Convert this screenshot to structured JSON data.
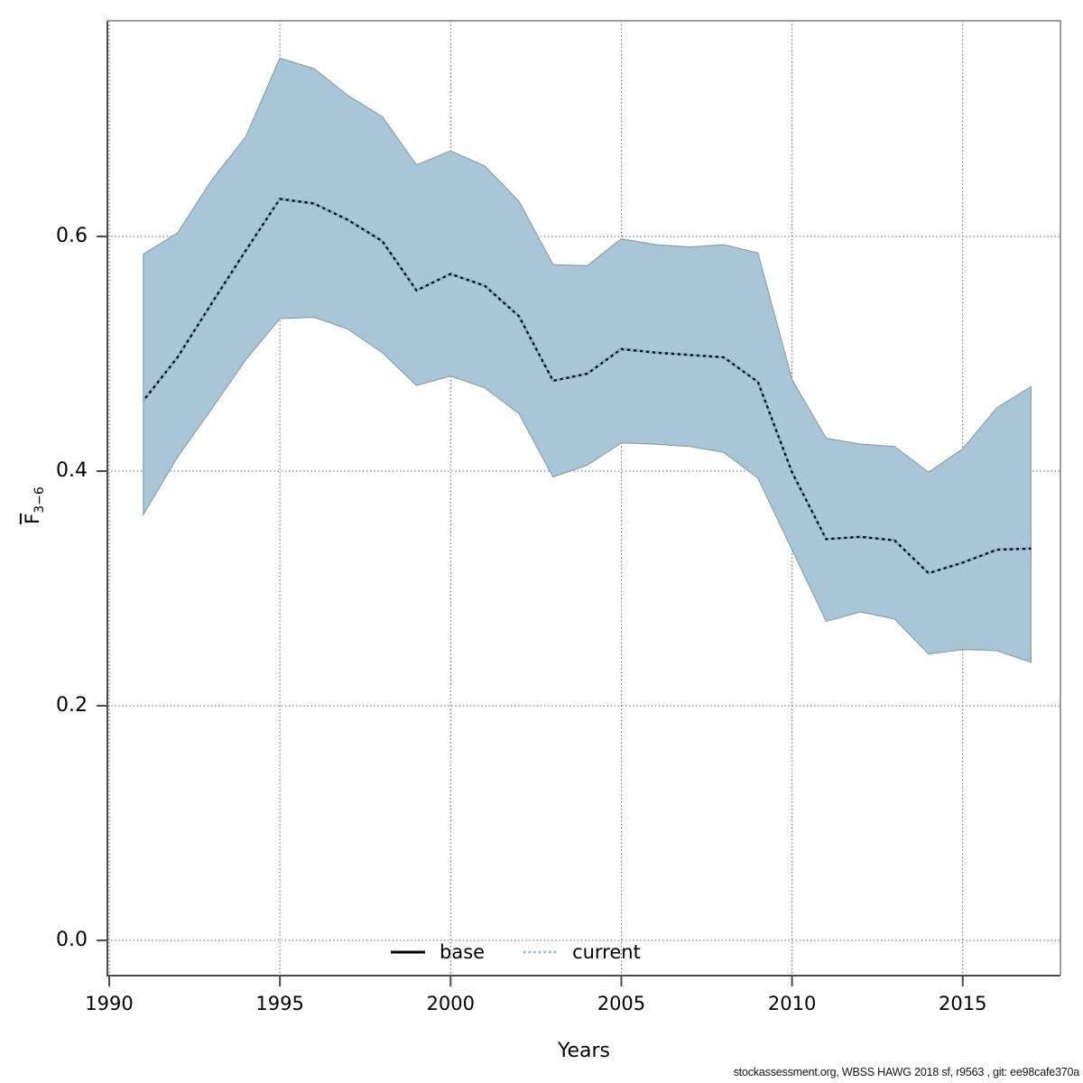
{
  "page": {
    "background": "#ffffff"
  },
  "axes": {
    "x_label": "Years",
    "y_label_main": "F",
    "y_label_sub": "3−6"
  },
  "legend": {
    "items": [
      {
        "label": "base",
        "color": "#000000",
        "style": "solid"
      },
      {
        "label": "current",
        "color": "#7fb8dc",
        "style": "dotted"
      }
    ]
  },
  "footer": {
    "text": "stockassessment.org, WBSS HAWG 2018 sf, r9563 , git: ee98cafe370a"
  },
  "colors": {
    "ribbon": "#a9c6d7",
    "ribbon_edge": "#8e9fa9",
    "grid": "#5f5f5f",
    "axis_dark": "#4c4c4c",
    "axis_light": "#9c9c9c",
    "text": "#000000"
  },
  "chart_data": {
    "type": "line",
    "title": "",
    "xlabel": "Years",
    "ylabel": "F̄3−6",
    "grid": true,
    "legend_position": "bottom-center-inside",
    "xlim": [
      1989.9,
      2017.9
    ],
    "ylim": [
      -0.03,
      0.784
    ],
    "x_ticks": [
      1990,
      1995,
      2000,
      2005,
      2010,
      2015
    ],
    "y_ticks": [
      "0.0",
      "0.2",
      "0.4",
      "0.6"
    ],
    "y_tick_values": [
      0.0,
      0.2,
      0.4,
      0.6
    ],
    "x": [
      1991,
      1992,
      1993,
      1994,
      1995,
      1996,
      1997,
      1998,
      1999,
      2000,
      2001,
      2002,
      2003,
      2004,
      2005,
      2006,
      2007,
      2008,
      2009,
      2010,
      2011,
      2012,
      2013,
      2014,
      2015,
      2016,
      2017
    ],
    "series": [
      {
        "name": "base",
        "style": "solid",
        "color": "#000000",
        "values": [
          0.46,
          0.497,
          0.543,
          0.588,
          0.632,
          0.628,
          0.614,
          0.596,
          0.554,
          0.568,
          0.558,
          0.532,
          0.477,
          0.483,
          0.504,
          0.501,
          0.499,
          0.497,
          0.476,
          0.399,
          0.342,
          0.344,
          0.341,
          0.313,
          0.322,
          0.333,
          0.334
        ]
      },
      {
        "name": "current",
        "style": "dotted",
        "color": "#7fb8dc",
        "values": [
          0.46,
          0.497,
          0.543,
          0.588,
          0.632,
          0.628,
          0.614,
          0.596,
          0.554,
          0.568,
          0.558,
          0.532,
          0.477,
          0.483,
          0.504,
          0.501,
          0.499,
          0.497,
          0.476,
          0.399,
          0.342,
          0.344,
          0.341,
          0.313,
          0.322,
          0.333,
          0.334
        ]
      }
    ],
    "band": {
      "series": "current",
      "fill": "#a9c6d7",
      "edge": "#8e9fa9",
      "lower": [
        0.363,
        0.412,
        0.453,
        0.495,
        0.53,
        0.531,
        0.521,
        0.501,
        0.473,
        0.481,
        0.471,
        0.449,
        0.395,
        0.405,
        0.424,
        0.423,
        0.421,
        0.416,
        0.394,
        0.333,
        0.272,
        0.28,
        0.274,
        0.244,
        0.248,
        0.247,
        0.237
      ],
      "upper": [
        0.585,
        0.603,
        0.648,
        0.685,
        0.752,
        0.743,
        0.72,
        0.702,
        0.661,
        0.673,
        0.66,
        0.63,
        0.576,
        0.575,
        0.598,
        0.593,
        0.591,
        0.593,
        0.586,
        0.478,
        0.428,
        0.423,
        0.421,
        0.399,
        0.419,
        0.454,
        0.472
      ]
    }
  }
}
